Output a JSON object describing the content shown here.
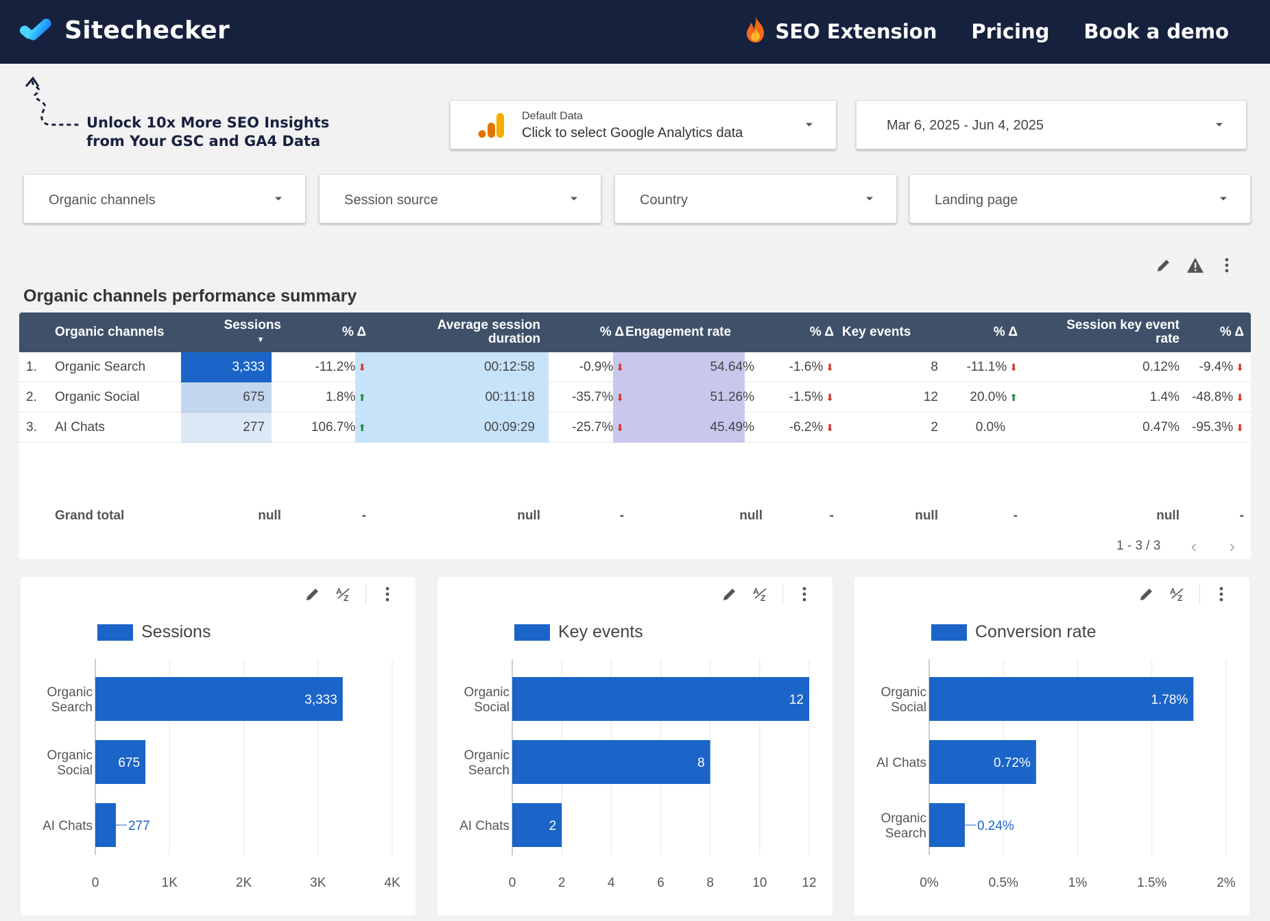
{
  "header": {
    "brand": "Sitechecker",
    "nav": [
      {
        "label": "SEO Extension",
        "icon": "fire-icon"
      },
      {
        "label": "Pricing"
      },
      {
        "label": "Book a demo"
      }
    ]
  },
  "promo": {
    "line1": "Unlock 10x More SEO Insights",
    "line2": "from Your GSC and GA4 Data"
  },
  "data_source": {
    "small": "Default Data",
    "main": "Click to select Google Analytics data"
  },
  "date_range": "Mar 6, 2025 - Jun 4, 2025",
  "filters": [
    "Organic channels",
    "Session source",
    "Country",
    "Landing page"
  ],
  "table": {
    "title": "Organic channels performance summary",
    "headers": {
      "channel": "Organic channels",
      "sessions": "Sessions",
      "delta": "% Δ",
      "duration_1": "Average session",
      "duration_2": "duration",
      "engagement": "Engagement rate",
      "key_events": "Key events",
      "skr_1": "Session key event",
      "skr_2": "rate"
    },
    "rows": [
      {
        "idx": "1.",
        "channel": "Organic Search",
        "sessions": "3,333",
        "sessions_d": "-11.2%",
        "sessions_dir": "down",
        "duration": "00:12:58",
        "duration_d": "-0.9%",
        "duration_dir": "down",
        "engagement": "54.64%",
        "engagement_d": "-1.6%",
        "engagement_dir": "down",
        "key_events": "8",
        "key_events_d": "-11.1%",
        "key_events_dir": "down",
        "skr": "0.12%",
        "skr_d": "-9.4%",
        "skr_dir": "down"
      },
      {
        "idx": "2.",
        "channel": "Organic Social",
        "sessions": "675",
        "sessions_d": "1.8%",
        "sessions_dir": "up",
        "duration": "00:11:18",
        "duration_d": "-35.7%",
        "duration_dir": "down",
        "engagement": "51.26%",
        "engagement_d": "-1.5%",
        "engagement_dir": "down",
        "key_events": "12",
        "key_events_d": "20.0%",
        "key_events_dir": "up",
        "skr": "1.4%",
        "skr_d": "-48.8%",
        "skr_dir": "down"
      },
      {
        "idx": "3.",
        "channel": "AI Chats",
        "sessions": "277",
        "sessions_d": "106.7%",
        "sessions_dir": "up",
        "duration": "00:09:29",
        "duration_d": "-25.7%",
        "duration_dir": "down",
        "engagement": "45.49%",
        "engagement_d": "-6.2%",
        "engagement_dir": "down",
        "key_events": "2",
        "key_events_d": "0.0%",
        "key_events_dir": "none",
        "skr": "0.47%",
        "skr_d": "-95.3%",
        "skr_dir": "down"
      }
    ],
    "sessions_share": [
      1.0,
      0.2,
      0.08
    ],
    "grand_total": {
      "label": "Grand total",
      "sessions": "null",
      "sessions_d": "-",
      "duration": "null",
      "duration_d": "-",
      "engagement": "null",
      "engagement_d": "-",
      "key_events": "null",
      "key_events_d": "-",
      "skr": "null",
      "skr_d": "-"
    },
    "pagination": "1 - 3 / 3"
  },
  "colors": {
    "header_bg": "#16213e",
    "bar": "#1b64c8",
    "table_header": "#3e5169",
    "duration_bg": "#c7e3fa",
    "engagement_bg": "#c7c8ec",
    "up": "#1e8e3e",
    "down": "#d93025"
  },
  "chart_data": [
    {
      "type": "bar",
      "orientation": "horizontal",
      "legend": "Sessions",
      "categories": [
        [
          "Organic",
          "Search"
        ],
        [
          "Organic",
          "Social"
        ],
        [
          "AI Chats"
        ]
      ],
      "values": [
        3333,
        675,
        277
      ],
      "value_labels": [
        "3,333",
        "675",
        "277"
      ],
      "xlim": [
        0,
        4000
      ],
      "ticks": [
        0,
        1000,
        2000,
        3000,
        4000
      ],
      "tick_labels": [
        "0",
        "1K",
        "2K",
        "3K",
        "4K"
      ],
      "grid": true
    },
    {
      "type": "bar",
      "orientation": "horizontal",
      "legend": "Key events",
      "categories": [
        [
          "Organic",
          "Social"
        ],
        [
          "Organic",
          "Search"
        ],
        [
          "AI Chats"
        ]
      ],
      "values": [
        12,
        8,
        2
      ],
      "value_labels": [
        "12",
        "8",
        "2"
      ],
      "xlim": [
        0,
        12
      ],
      "ticks": [
        0,
        2,
        4,
        6,
        8,
        10,
        12
      ],
      "tick_labels": [
        "0",
        "2",
        "4",
        "6",
        "8",
        "10",
        "12"
      ],
      "grid": true
    },
    {
      "type": "bar",
      "orientation": "horizontal",
      "legend": "Conversion rate",
      "categories": [
        [
          "Organic",
          "Social"
        ],
        [
          "AI Chats"
        ],
        [
          "Organic",
          "Search"
        ]
      ],
      "values": [
        1.78,
        0.72,
        0.24
      ],
      "value_labels": [
        "1.78%",
        "0.72%",
        "0.24%"
      ],
      "xlim": [
        0,
        2
      ],
      "ticks": [
        0,
        0.5,
        1,
        1.5,
        2
      ],
      "tick_labels": [
        "0%",
        "0.5%",
        "1%",
        "1.5%",
        "2%"
      ],
      "grid": true
    }
  ]
}
